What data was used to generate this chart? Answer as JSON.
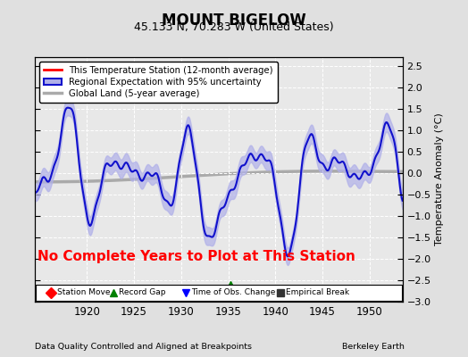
{
  "title": "MOUNT BIGELOW",
  "subtitle": "45.133 N, 70.283 W (United States)",
  "ylabel": "Temperature Anomaly (°C)",
  "xlim": [
    1914.5,
    1953.5
  ],
  "ylim": [
    -3.0,
    2.7
  ],
  "yticks": [
    -3,
    -2.5,
    -2,
    -1.5,
    -1,
    -0.5,
    0,
    0.5,
    1,
    1.5,
    2,
    2.5
  ],
  "xticks": [
    1920,
    1925,
    1930,
    1935,
    1940,
    1945,
    1950
  ],
  "background_color": "#e0e0e0",
  "plot_bg_color": "#e8e8e8",
  "no_data_text": "No Complete Years to Plot at This Station",
  "no_data_color": "red",
  "footer_left": "Data Quality Controlled and Aligned at Breakpoints",
  "footer_right": "Berkeley Earth",
  "record_gap_x": 1935.2,
  "record_gap_y": -2.62,
  "legend_line1": "This Temperature Station (12-month average)",
  "legend_line2": "Regional Expectation with 95% uncertainty",
  "legend_line3": "Global Land (5-year average)",
  "icon_markers": [
    "D",
    "^",
    "v",
    "s"
  ],
  "icon_colors": [
    "red",
    "green",
    "blue",
    "#333333"
  ],
  "icon_labels": [
    "Station Move",
    "Record Gap",
    "Time of Obs. Change",
    "Empirical Break"
  ]
}
